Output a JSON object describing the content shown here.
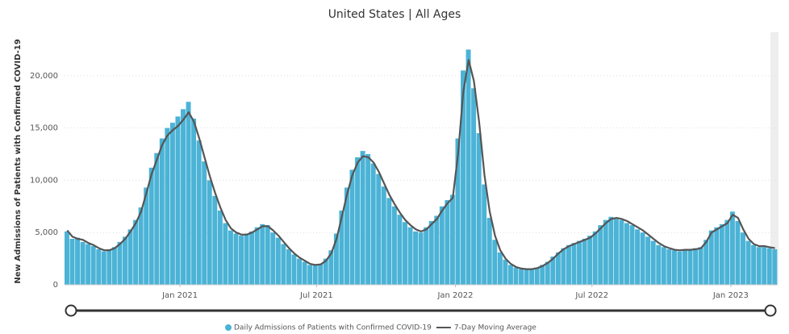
{
  "chart_data": {
    "type": "bar_line",
    "title": "United States | All Ages",
    "y_label": "New Admissions of Patients with Confirmed COVID-19",
    "x": [
      "2020-08-01",
      "2020-08-08",
      "2020-08-15",
      "2020-08-22",
      "2020-08-29",
      "2020-09-05",
      "2020-09-12",
      "2020-09-19",
      "2020-09-26",
      "2020-10-03",
      "2020-10-10",
      "2020-10-17",
      "2020-10-24",
      "2020-10-31",
      "2020-11-07",
      "2020-11-14",
      "2020-11-21",
      "2020-11-28",
      "2020-12-05",
      "2020-12-12",
      "2020-12-19",
      "2020-12-26",
      "2021-01-02",
      "2021-01-09",
      "2021-01-16",
      "2021-01-23",
      "2021-01-30",
      "2021-02-06",
      "2021-02-13",
      "2021-02-20",
      "2021-02-27",
      "2021-03-06",
      "2021-03-13",
      "2021-03-20",
      "2021-03-27",
      "2021-04-03",
      "2021-04-10",
      "2021-04-17",
      "2021-04-24",
      "2021-05-01",
      "2021-05-08",
      "2021-05-15",
      "2021-05-22",
      "2021-05-29",
      "2021-06-05",
      "2021-06-12",
      "2021-06-19",
      "2021-06-26",
      "2021-07-03",
      "2021-07-10",
      "2021-07-17",
      "2021-07-24",
      "2021-07-31",
      "2021-08-07",
      "2021-08-14",
      "2021-08-21",
      "2021-08-28",
      "2021-09-04",
      "2021-09-11",
      "2021-09-18",
      "2021-09-25",
      "2021-10-02",
      "2021-10-09",
      "2021-10-16",
      "2021-10-23",
      "2021-10-30",
      "2021-11-06",
      "2021-11-13",
      "2021-11-20",
      "2021-11-27",
      "2021-12-04",
      "2021-12-11",
      "2021-12-18",
      "2021-12-25",
      "2022-01-01",
      "2022-01-08",
      "2022-01-15",
      "2022-01-22",
      "2022-01-29",
      "2022-02-05",
      "2022-02-12",
      "2022-02-19",
      "2022-02-26",
      "2022-03-05",
      "2022-03-12",
      "2022-03-19",
      "2022-03-26",
      "2022-04-02",
      "2022-04-09",
      "2022-04-16",
      "2022-04-23",
      "2022-04-30",
      "2022-05-07",
      "2022-05-14",
      "2022-05-21",
      "2022-05-28",
      "2022-06-04",
      "2022-06-11",
      "2022-06-18",
      "2022-06-25",
      "2022-07-02",
      "2022-07-09",
      "2022-07-16",
      "2022-07-23",
      "2022-07-30",
      "2022-08-06",
      "2022-08-13",
      "2022-08-20",
      "2022-08-27",
      "2022-09-03",
      "2022-09-10",
      "2022-09-17",
      "2022-09-24",
      "2022-10-01",
      "2022-10-08",
      "2022-10-15",
      "2022-10-22",
      "2022-10-29",
      "2022-11-05",
      "2022-11-12",
      "2022-11-19",
      "2022-11-26",
      "2022-12-03",
      "2022-12-10",
      "2022-12-17",
      "2022-12-24",
      "2022-12-31",
      "2023-01-07",
      "2023-01-14",
      "2023-01-21",
      "2023-01-28",
      "2023-02-04",
      "2023-02-11",
      "2023-02-18",
      "2023-02-25"
    ],
    "series": [
      {
        "name": "Daily Admissions of Patients with Confirmed COVID-19",
        "color": "#4bb3d6",
        "values": [
          5100,
          4400,
          4500,
          4100,
          3900,
          3700,
          3400,
          3200,
          3400,
          3600,
          4100,
          4600,
          5300,
          6200,
          7400,
          9300,
          11200,
          12600,
          14000,
          15000,
          15500,
          16100,
          16800,
          17500,
          15900,
          13800,
          11800,
          10000,
          8500,
          7100,
          5900,
          5200,
          4900,
          4700,
          4900,
          5100,
          5500,
          5800,
          5700,
          5000,
          4500,
          3900,
          3400,
          2900,
          2500,
          2200,
          1900,
          1850,
          2000,
          2500,
          3300,
          4900,
          7100,
          9300,
          11000,
          12200,
          12800,
          12500,
          11600,
          10600,
          9400,
          8300,
          7500,
          6700,
          6000,
          5500,
          5100,
          5000,
          5500,
          6100,
          6600,
          7500,
          8100,
          8600,
          14000,
          20500,
          22500,
          18800,
          14500,
          9600,
          6400,
          4300,
          3100,
          2400,
          1900,
          1650,
          1500,
          1450,
          1500,
          1650,
          1900,
          2200,
          2700,
          3100,
          3500,
          3800,
          4000,
          4200,
          4400,
          4700,
          5100,
          5700,
          6200,
          6500,
          6300,
          6200,
          5900,
          5700,
          5300,
          5000,
          4600,
          4200,
          3800,
          3600,
          3400,
          3300,
          3200,
          3300,
          3300,
          3500,
          3600,
          4300,
          5200,
          5500,
          5800,
          6200,
          7000,
          6100,
          5000,
          4200,
          3800,
          3600,
          3600,
          3500,
          3400
        ]
      },
      {
        "name": "7-Day Moving Average",
        "color": "#555555",
        "values": [
          5200,
          4600,
          4400,
          4300,
          4000,
          3800,
          3500,
          3300,
          3300,
          3500,
          3900,
          4400,
          5100,
          5900,
          7000,
          8800,
          10600,
          12000,
          13400,
          14300,
          14800,
          15200,
          15800,
          16500,
          15600,
          14000,
          12200,
          10400,
          8800,
          7400,
          6200,
          5400,
          5000,
          4800,
          4800,
          5000,
          5300,
          5600,
          5600,
          5200,
          4700,
          4100,
          3500,
          3000,
          2600,
          2300,
          2000,
          1900,
          1950,
          2300,
          3000,
          4400,
          6500,
          8700,
          10500,
          11700,
          12300,
          12200,
          11700,
          10800,
          9700,
          8600,
          7700,
          6900,
          6200,
          5700,
          5300,
          5100,
          5300,
          5800,
          6300,
          7100,
          7800,
          8300,
          12500,
          18500,
          21500,
          19500,
          15500,
          10500,
          7000,
          4700,
          3300,
          2500,
          2000,
          1700,
          1550,
          1500,
          1500,
          1600,
          1800,
          2100,
          2500,
          3000,
          3400,
          3700,
          3900,
          4100,
          4300,
          4500,
          4900,
          5400,
          5900,
          6300,
          6400,
          6300,
          6100,
          5800,
          5500,
          5200,
          4800,
          4400,
          4000,
          3700,
          3500,
          3350,
          3300,
          3350,
          3350,
          3400,
          3500,
          4100,
          5000,
          5300,
          5600,
          5900,
          6700,
          6400,
          5300,
          4400,
          3900,
          3700,
          3700,
          3600,
          3500
        ]
      }
    ],
    "xlim": [
      "2020-08-01",
      "2023-03-02"
    ],
    "xticks": [
      {
        "value": "2021-01-01",
        "label": "Jan 2021"
      },
      {
        "value": "2021-07-01",
        "label": "Jul 2021"
      },
      {
        "value": "2022-01-01",
        "label": "Jan 2022"
      },
      {
        "value": "2022-07-01",
        "label": "Jul 2022"
      },
      {
        "value": "2023-01-01",
        "label": "Jan 2023"
      }
    ],
    "ylim": [
      0,
      24000
    ],
    "yticks": [
      0,
      {
        "value": 5000,
        "label": "5,000"
      },
      {
        "value": 10000,
        "label": "10,000"
      },
      {
        "value": 15000,
        "label": "15,000"
      },
      {
        "value": 20000,
        "label": "20,000"
      }
    ],
    "grid": true
  }
}
